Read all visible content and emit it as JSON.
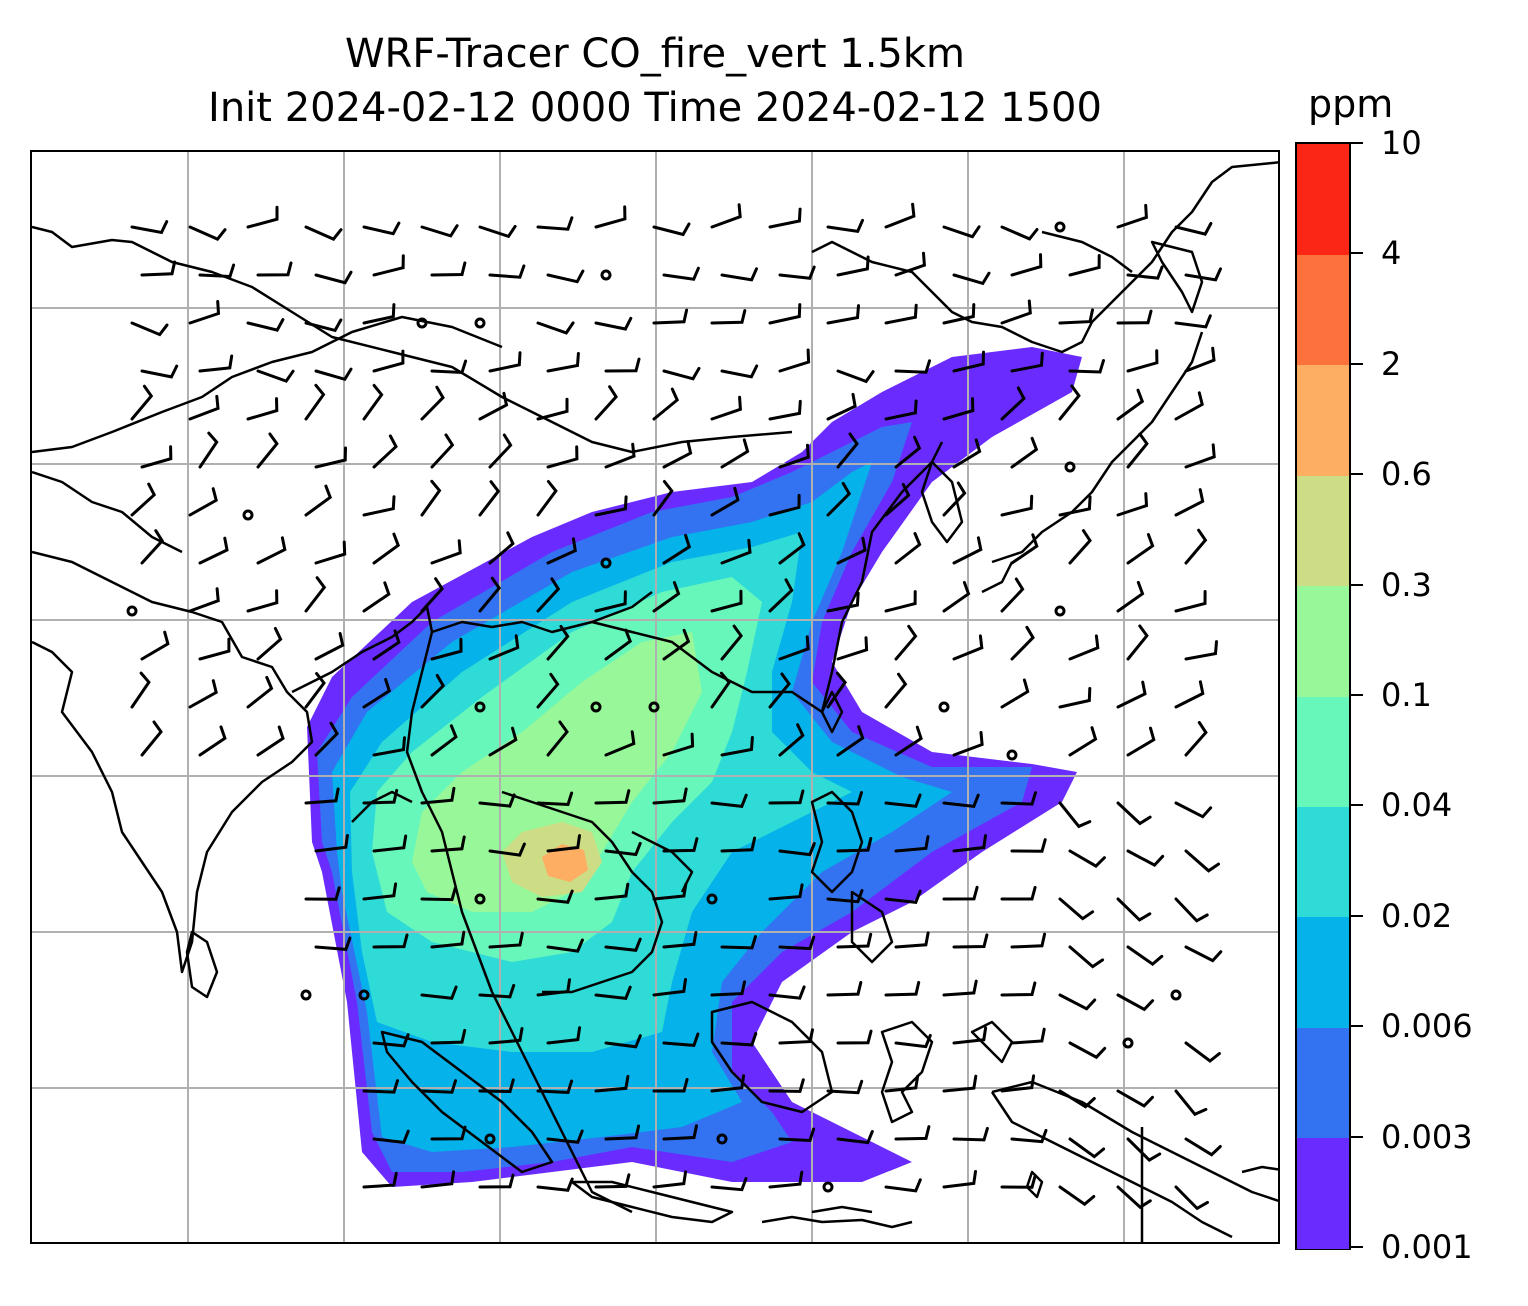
{
  "header": {
    "title_line1": "WRF-Tracer CO_fire_vert 1.5km",
    "title_line2": "Init 2024-02-12 0000 Time 2024-02-12 1500"
  },
  "colorbar": {
    "unit": "ppm",
    "levels": [
      "0.001",
      "0.003",
      "0.006",
      "0.02",
      "0.04",
      "0.1",
      "0.3",
      "0.6",
      "2",
      "4",
      "10"
    ],
    "colors": [
      "#6a2bff",
      "#3373f2",
      "#05b2ea",
      "#2fdbd6",
      "#68f7bb",
      "#98f798",
      "#cddd85",
      "#fdae63",
      "#fd723c",
      "#fb2616"
    ]
  },
  "map": {
    "gridlines": true,
    "coastline_color": "#000000",
    "gridline_color": "#b0b0b0"
  }
}
